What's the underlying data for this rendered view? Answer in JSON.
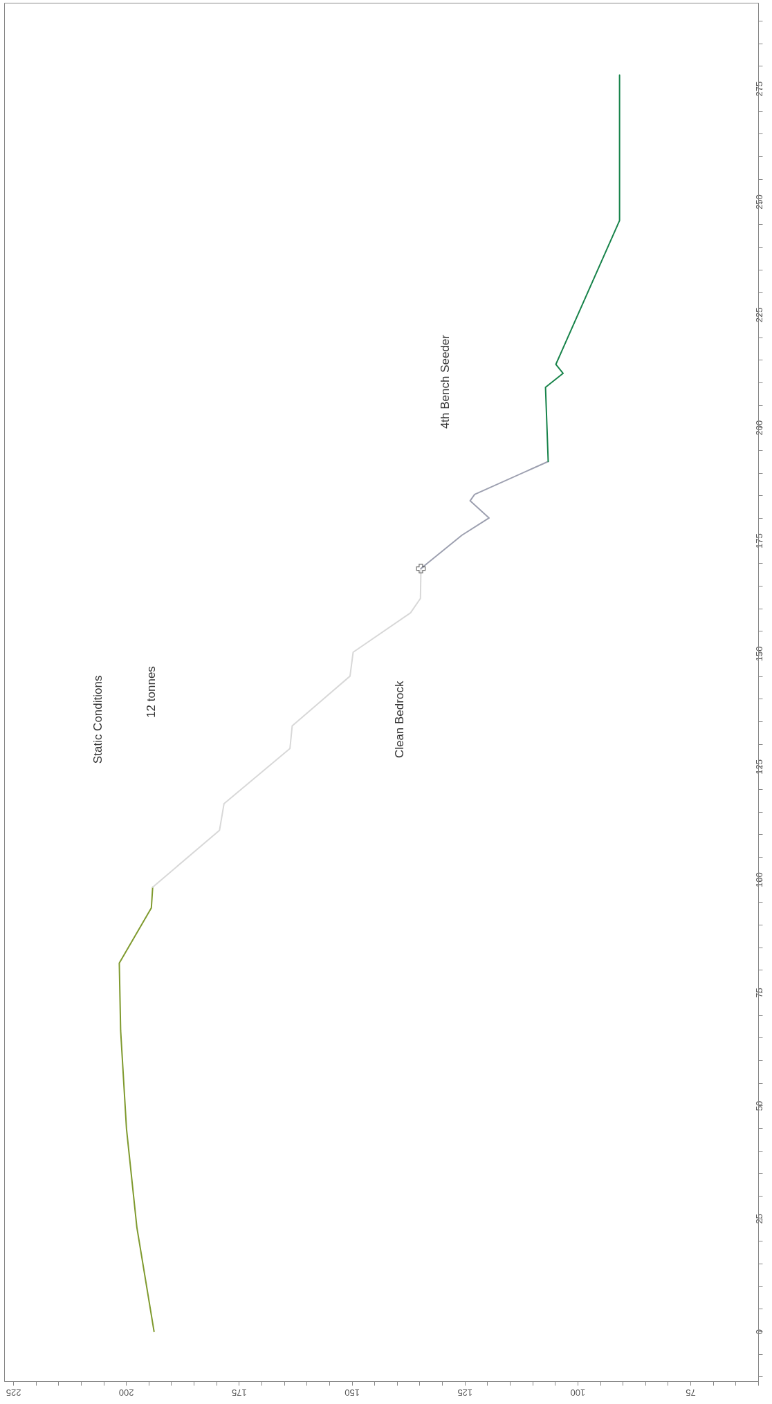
{
  "chart_data": {
    "type": "line",
    "ylim": [
      -11,
      294
    ],
    "xlim": [
      227,
      60
    ],
    "yticks": [
      {
        "value": -10,
        "label": null
      },
      {
        "value": -5,
        "label": null
      },
      0,
      {
        "value": 5,
        "label": null
      },
      {
        "value": 10,
        "label": null
      },
      {
        "value": 15,
        "label": null
      },
      {
        "value": 20,
        "label": null
      },
      25,
      {
        "value": 30,
        "label": null
      },
      {
        "value": 35,
        "label": null
      },
      {
        "value": 40,
        "label": null
      },
      {
        "value": 45,
        "label": null
      },
      50,
      {
        "value": 55,
        "label": null
      },
      {
        "value": 60,
        "label": null
      },
      {
        "value": 65,
        "label": null
      },
      {
        "value": 70,
        "label": null
      },
      75,
      {
        "value": 80,
        "label": null
      },
      {
        "value": 85,
        "label": null
      },
      {
        "value": 90,
        "label": null
      },
      {
        "value": 95,
        "label": null
      },
      100,
      {
        "value": 105,
        "label": null
      },
      {
        "value": 110,
        "label": null
      },
      {
        "value": 115,
        "label": null
      },
      {
        "value": 120,
        "label": null
      },
      125,
      {
        "value": 130,
        "label": null
      },
      {
        "value": 135,
        "label": null
      },
      {
        "value": 140,
        "label": null
      },
      {
        "value": 145,
        "label": null
      },
      150,
      {
        "value": 155,
        "label": null
      },
      {
        "value": 160,
        "label": null
      },
      {
        "value": 165,
        "label": null
      },
      {
        "value": 170,
        "label": null
      },
      175,
      {
        "value": 180,
        "label": null
      },
      {
        "value": 185,
        "label": null
      },
      {
        "value": 190,
        "label": null
      },
      {
        "value": 195,
        "label": null
      },
      200,
      {
        "value": 205,
        "label": null
      },
      {
        "value": 210,
        "label": null
      },
      {
        "value": 215,
        "label": null
      },
      {
        "value": 220,
        "label": null
      },
      225,
      {
        "value": 230,
        "label": null
      },
      {
        "value": 235,
        "label": null
      },
      {
        "value": 240,
        "label": null
      },
      {
        "value": 245,
        "label": null
      },
      250,
      {
        "value": 255,
        "label": null
      },
      {
        "value": 260,
        "label": null
      },
      {
        "value": 265,
        "label": null
      },
      {
        "value": 270,
        "label": null
      },
      275,
      {
        "value": 280,
        "label": null
      },
      {
        "value": 285,
        "label": null
      },
      {
        "value": 290,
        "label": null
      }
    ],
    "xticks": [
      {
        "value": 60,
        "label": null
      },
      {
        "value": 65,
        "label": null
      },
      {
        "value": 70,
        "label": null
      },
      75,
      {
        "value": 80,
        "label": null
      },
      {
        "value": 85,
        "label": null
      },
      {
        "value": 90,
        "label": null
      },
      {
        "value": 95,
        "label": null
      },
      100,
      {
        "value": 105,
        "label": null
      },
      {
        "value": 110,
        "label": null
      },
      {
        "value": 115,
        "label": null
      },
      {
        "value": 120,
        "label": null
      },
      125,
      {
        "value": 130,
        "label": null
      },
      {
        "value": 135,
        "label": null
      },
      {
        "value": 140,
        "label": null
      },
      {
        "value": 145,
        "label": null
      },
      150,
      {
        "value": 155,
        "label": null
      },
      {
        "value": 160,
        "label": null
      },
      {
        "value": 165,
        "label": null
      },
      {
        "value": 170,
        "label": null
      },
      175,
      {
        "value": 180,
        "label": null
      },
      {
        "value": 185,
        "label": null
      },
      {
        "value": 190,
        "label": null
      },
      {
        "value": 195,
        "label": null
      },
      200,
      {
        "value": 205,
        "label": null
      },
      {
        "value": 210,
        "label": null
      },
      {
        "value": 215,
        "label": null
      },
      {
        "value": 220,
        "label": null
      },
      225
    ],
    "series": [
      {
        "color": "#7f9a2e",
        "values": [
          0,
          23,
          44.8,
          66.6,
          81.5,
          93.7,
          98.3
        ],
        "x": [
          193.8,
          197.6,
          199.9,
          201.2,
          201.5,
          194.4,
          194.1
        ]
      },
      {
        "color": "#d8d8d8",
        "values": [
          98.3,
          110.9,
          116.8,
          129,
          134,
          145,
          150.3,
          159,
          162.2,
          168.1,
          168.8
        ],
        "x": [
          194.1,
          179.3,
          178.3,
          163.7,
          163.2,
          150.4,
          149.7,
          137,
          134.8,
          134.7,
          134.7
        ]
      },
      {
        "color": "#9da0b0",
        "values": [
          168.8,
          170.2,
          176.2,
          180,
          183.8,
          185.2,
          192.5
        ],
        "x": [
          134.7,
          133,
          125.6,
          119.6,
          123.8,
          122.8,
          106.5
        ]
      },
      {
        "color": "#17834a",
        "values": [
          192.5,
          208.9,
          212,
          214,
          245.8,
          278
        ],
        "x": [
          106.5,
          107.1,
          103.2,
          104.8,
          90.7,
          90.7
        ]
      },
      {
        "type": "scatter",
        "marker": "cross",
        "color": "#333333",
        "values": [
          168.8
        ],
        "x": [
          134.7
        ]
      }
    ],
    "annotations": [
      "Static Conditions",
      "12 tonnes",
      "Clean Bedrock",
      "4th Bench Seeder"
    ],
    "grid": false
  }
}
